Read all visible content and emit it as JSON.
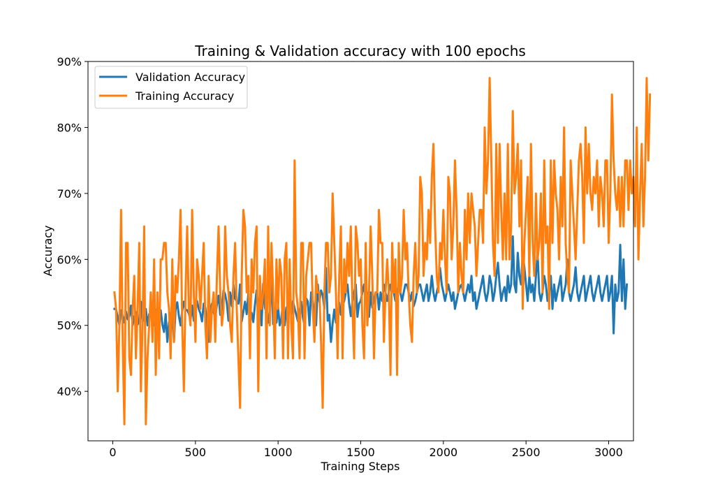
{
  "chart_data": {
    "type": "line",
    "title": "Training & Validation accuracy with 100 epochs",
    "xlabel": "Training Steps",
    "ylabel": "Accuracy",
    "xlim": [
      -150,
      3150
    ],
    "ylim": [
      32.5,
      90
    ],
    "x_ticks": [
      0,
      500,
      1000,
      1500,
      2000,
      2500,
      3000
    ],
    "y_ticks": [
      40,
      50,
      60,
      70,
      80,
      90
    ],
    "y_tick_suffix": "%",
    "legend_position": "top-left",
    "series": [
      {
        "name": "Validation Accuracy",
        "color": "#1f77b4",
        "x_start": 10,
        "x_step": 10,
        "values": [
          52.5,
          52.4,
          51.2,
          50.0,
          52.3,
          51.5,
          50.4,
          52.1,
          50.9,
          51.4,
          53.0,
          50.0,
          51.3,
          52.0,
          50.1,
          50.8,
          53.6,
          50.5,
          51.3,
          52.5,
          50.0,
          51.7,
          52.0,
          51.2,
          50.0,
          52.4,
          50.9,
          51.8,
          52.3,
          50.1,
          49.0,
          51.7,
          47.5,
          50.4,
          51.8,
          52.3,
          47.5,
          52.4,
          53.5,
          51.4,
          50.0,
          52.2,
          53.6,
          52.4,
          52.3,
          51.8,
          50.8,
          53.0,
          50.7,
          52.2,
          53.7,
          52.5,
          51.8,
          50.6,
          53.3,
          52.7,
          50.0,
          47.5,
          52.4,
          53.3,
          52.0,
          51.2,
          53.2,
          54.5,
          51.6,
          52.4,
          55.3,
          54.7,
          53.3,
          50.7,
          55.0,
          52.9,
          56.2,
          54.0,
          53.7,
          53.3,
          56.2,
          50.6,
          52.1,
          53.6,
          51.7,
          54.8,
          52.1,
          51.9,
          50.5,
          53.1,
          55.3,
          52.2,
          54.6,
          50.0,
          56.3,
          52.7,
          51.9,
          50.4,
          52.4,
          57.5,
          50.2,
          52.0,
          50.4,
          52.8,
          50.0,
          51.1,
          53.6,
          50.0,
          52.7,
          50.0,
          54.6,
          51.7,
          53.7,
          52.6,
          51.6,
          50.6,
          52.1,
          53.6,
          51.2,
          50.0,
          54.1,
          53.6,
          50.0,
          55.0,
          53.7,
          51.3,
          50.0,
          56.2,
          53.6,
          55.3,
          54.6,
          52.5,
          58.7,
          50.7,
          51.6,
          47.5,
          50.3,
          52.4,
          50.4,
          51.3,
          53.5,
          51.6,
          53.0,
          53.7,
          55.0,
          56.2,
          53.3,
          51.4,
          53.7,
          55.0,
          56.2,
          51.3,
          53.3,
          53.7,
          55.0,
          56.2,
          53.7,
          55.0,
          51.3,
          55.0,
          52.7,
          53.7,
          55.0,
          55.0,
          52.4,
          55.0,
          53.7,
          56.2,
          55.0,
          53.7,
          55.0,
          56.2,
          56.2,
          55.0,
          53.7,
          55.0,
          56.2,
          55.0,
          53.7,
          55.0,
          56.2,
          56.2,
          55.0,
          53.7,
          55.0,
          52.9,
          53.7,
          55.0,
          56.2,
          56.2,
          55.0,
          53.7,
          55.0,
          56.2,
          53.7,
          55.0,
          57.5,
          55.0,
          53.7,
          55.0,
          56.2,
          58.7,
          56.2,
          55.0,
          53.7,
          55.0,
          56.2,
          55.0,
          53.7,
          55.0,
          52.5,
          53.7,
          55.0,
          55.8,
          56.2,
          55.0,
          53.7,
          55.0,
          56.2,
          55.0,
          57.5,
          53.7,
          55.0,
          52.5,
          53.7,
          55.0,
          56.2,
          57.5,
          55.0,
          53.7,
          55.0,
          57.5,
          56.2,
          53.7,
          55.0,
          57.5,
          59.5,
          56.2,
          53.7,
          55.0,
          55.8,
          53.7,
          57.5,
          55.0,
          56.2,
          63.5,
          56.2,
          55.0,
          61.0,
          57.5,
          56.2,
          61.0,
          58.8,
          56.2,
          53.7,
          57.5,
          55.0,
          56.2,
          53.7,
          57.5,
          61.0,
          55.0,
          53.7,
          55.0,
          57.5,
          56.2,
          53.7,
          55.0,
          57.5,
          52.5,
          56.2,
          53.7,
          55.0,
          56.2,
          57.5,
          53.7,
          55.0,
          56.2,
          60.0,
          55.0,
          53.7,
          55.0,
          56.2,
          58.8,
          55.0,
          53.7,
          55.0,
          56.2,
          57.5,
          53.7,
          55.0,
          56.2,
          57.5,
          55.0,
          53.7,
          55.0,
          56.2,
          57.5,
          55.0,
          53.7,
          55.0,
          56.2,
          57.5,
          53.7,
          55.0,
          57.5,
          48.8,
          56.2,
          53.7,
          55.0,
          62.2,
          53.7,
          60.0,
          52.5,
          56.2
        ]
      },
      {
        "name": "Training Accuracy",
        "color": "#ff7f0e",
        "x_start": 10,
        "x_step": 10,
        "values": [
          55.0,
          52.5,
          40.0,
          50.0,
          67.5,
          47.5,
          35.0,
          62.5,
          62.5,
          45.0,
          42.5,
          52.5,
          57.5,
          45.0,
          52.5,
          62.5,
          40.0,
          50.0,
          65.0,
          35.0,
          45.0,
          50.0,
          55.0,
          47.5,
          60.0,
          42.5,
          55.0,
          45.0,
          60.0,
          60.0,
          62.5,
          62.5,
          55.0,
          52.5,
          45.0,
          60.0,
          47.5,
          57.5,
          55.0,
          60.0,
          67.5,
          50.0,
          40.0,
          55.0,
          65.0,
          52.5,
          50.0,
          67.5,
          55.0,
          47.5,
          60.0,
          57.5,
          52.5,
          57.5,
          62.5,
          50.0,
          45.0,
          57.5,
          47.5,
          52.5,
          55.0,
          47.5,
          57.5,
          65.0,
          55.0,
          50.0,
          52.5,
          65.0,
          57.5,
          55.0,
          50.0,
          47.5,
          57.5,
          62.5,
          52.5,
          45.0,
          37.5,
          57.5,
          67.5,
          65.0,
          55.0,
          57.5,
          45.0,
          60.0,
          55.0,
          62.5,
          65.0,
          40.0,
          57.5,
          52.5,
          55.0,
          60.0,
          45.0,
          65.0,
          50.0,
          62.5,
          55.0,
          45.0,
          60.0,
          52.5,
          60.0,
          57.5,
          45.0,
          60.0,
          62.5,
          45.0,
          60.0,
          50.0,
          45.0,
          75.0,
          55.0,
          52.5,
          45.0,
          62.5,
          62.5,
          45.0,
          57.5,
          60.0,
          62.5,
          62.5,
          52.5,
          47.5,
          57.5,
          55.0,
          55.0,
          47.5,
          37.5,
          55.0,
          62.5,
          62.5,
          55.0,
          57.5,
          70.0,
          62.5,
          55.0,
          45.0,
          57.5,
          65.0,
          45.0,
          60.0,
          55.0,
          62.5,
          57.5,
          65.0,
          52.5,
          45.0,
          65.0,
          62.5,
          57.5,
          60.0,
          50.0,
          45.0,
          62.5,
          50.0,
          55.0,
          65.0,
          57.5,
          45.0,
          55.0,
          55.0,
          67.5,
          62.5,
          62.5,
          47.5,
          55.0,
          60.0,
          55.0,
          42.5,
          62.5,
          55.0,
          60.0,
          42.5,
          62.5,
          55.0,
          57.5,
          67.5,
          60.0,
          62.5,
          55.0,
          50.0,
          47.5,
          57.5,
          62.5,
          55.0,
          57.5,
          72.5,
          70.0,
          57.5,
          62.5,
          60.0,
          67.5,
          62.5,
          72.5,
          77.5,
          65.0,
          57.5,
          55.0,
          62.5,
          60.0,
          67.5,
          60.0,
          55.0,
          72.5,
          70.0,
          60.0,
          65.0,
          75.0,
          67.5,
          55.0,
          62.5,
          57.5,
          55.0,
          67.5,
          60.0,
          70.0,
          62.5,
          70.0,
          67.5,
          65.0,
          57.5,
          62.5,
          67.5,
          67.5,
          62.5,
          80.0,
          70.0,
          75.0,
          87.5,
          75.0,
          62.5,
          57.5,
          77.5,
          62.5,
          77.5,
          67.5,
          60.0,
          70.0,
          60.0,
          77.5,
          60.0,
          65.0,
          82.5,
          70.0,
          72.5,
          77.5,
          65.0,
          75.0,
          52.5,
          62.5,
          67.5,
          72.5,
          57.5,
          77.5,
          62.5,
          57.5,
          70.0,
          60.0,
          62.5,
          70.0,
          55.0,
          75.0,
          62.5,
          65.0,
          52.5,
          75.0,
          62.5,
          75.0,
          70.0,
          67.5,
          60.0,
          72.5,
          65.0,
          80.0,
          62.5,
          57.5,
          55.0,
          75.0,
          70.0,
          65.0,
          60.0,
          67.5,
          75.0,
          77.5,
          72.5,
          62.5,
          80.0,
          70.0,
          77.5,
          70.0,
          67.5,
          72.5,
          70.0,
          75.0,
          65.0,
          72.5,
          70.0,
          65.0,
          75.0,
          75.0,
          62.5,
          70.0,
          85.0,
          75.0,
          70.0,
          67.5,
          72.5,
          65.0,
          72.5,
          65.0,
          75.0,
          75.0,
          67.5,
          75.0,
          70.0,
          72.5,
          65.0,
          80.0,
          60.0,
          70.0,
          77.5,
          65.0,
          72.5,
          87.5,
          75.0,
          85.0
        ]
      }
    ]
  }
}
